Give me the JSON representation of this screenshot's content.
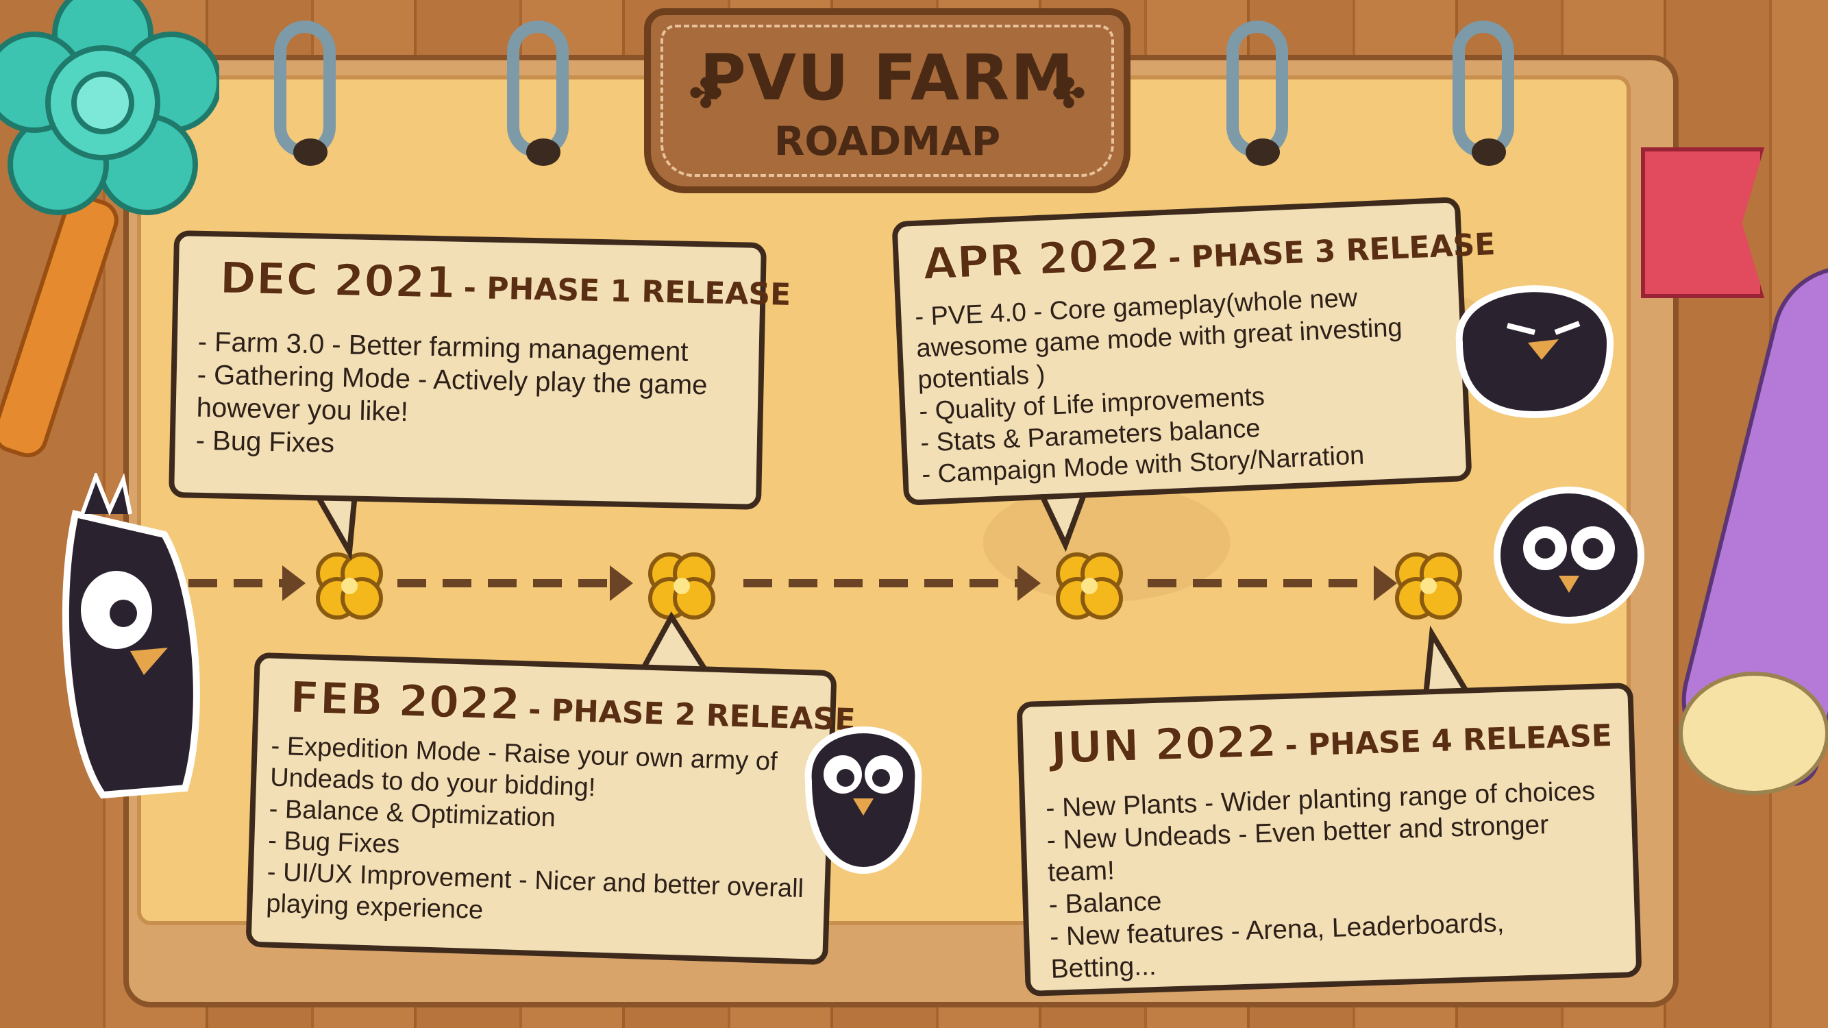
{
  "title": {
    "main": "PVU FARM",
    "sub": "ROADMAP"
  },
  "milestones": [
    {
      "date": "DEC 2021",
      "phase": "- PHASE 1 RELEASE",
      "items": [
        "- Farm 3.0 - Better farming management",
        "- Gathering Mode - Actively play the game",
        "however you like!",
        "- Bug Fixes"
      ]
    },
    {
      "date": "FEB 2022",
      "phase": "- PHASE 2 RELEASE",
      "items": [
        "- Expedition Mode - Raise your own army of",
        "Undeads to do your bidding!",
        "- Balance & Optimization",
        "- Bug Fixes",
        "- UI/UX Improvement - Nicer and better overall",
        "playing experience"
      ]
    },
    {
      "date": "APR 2022",
      "phase": "- PHASE 3 RELEASE",
      "items": [
        "- PVE 4.0 - Core gameplay(whole new",
        "awesome game mode with great investing",
        "potentials )",
        "- Quality of Life improvements",
        "- Stats & Parameters balance",
        "- Campaign Mode with Story/Narration"
      ]
    },
    {
      "date": "JUN 2022",
      "phase": "- PHASE 4 RELEASE",
      "items": [
        "- New Plants - Wider planting range of choices",
        "- New Undeads - Even better and stronger",
        "team!",
        "- Balance",
        "- New features - Arena, Leaderboards,",
        "Betting..."
      ]
    }
  ],
  "colors": {
    "wood": "#b7743c",
    "paper": "#f4c97a",
    "bubble": "#f3dfb6",
    "outline": "#3d2a1c",
    "heading": "#5a2e12",
    "clover": "#f5b81c",
    "plaque": "#a86b3c"
  },
  "icons": [
    "clover-icon",
    "arrow-right-icon",
    "crow-character",
    "flower-key",
    "ribbon-bookmark",
    "feather-quill"
  ]
}
